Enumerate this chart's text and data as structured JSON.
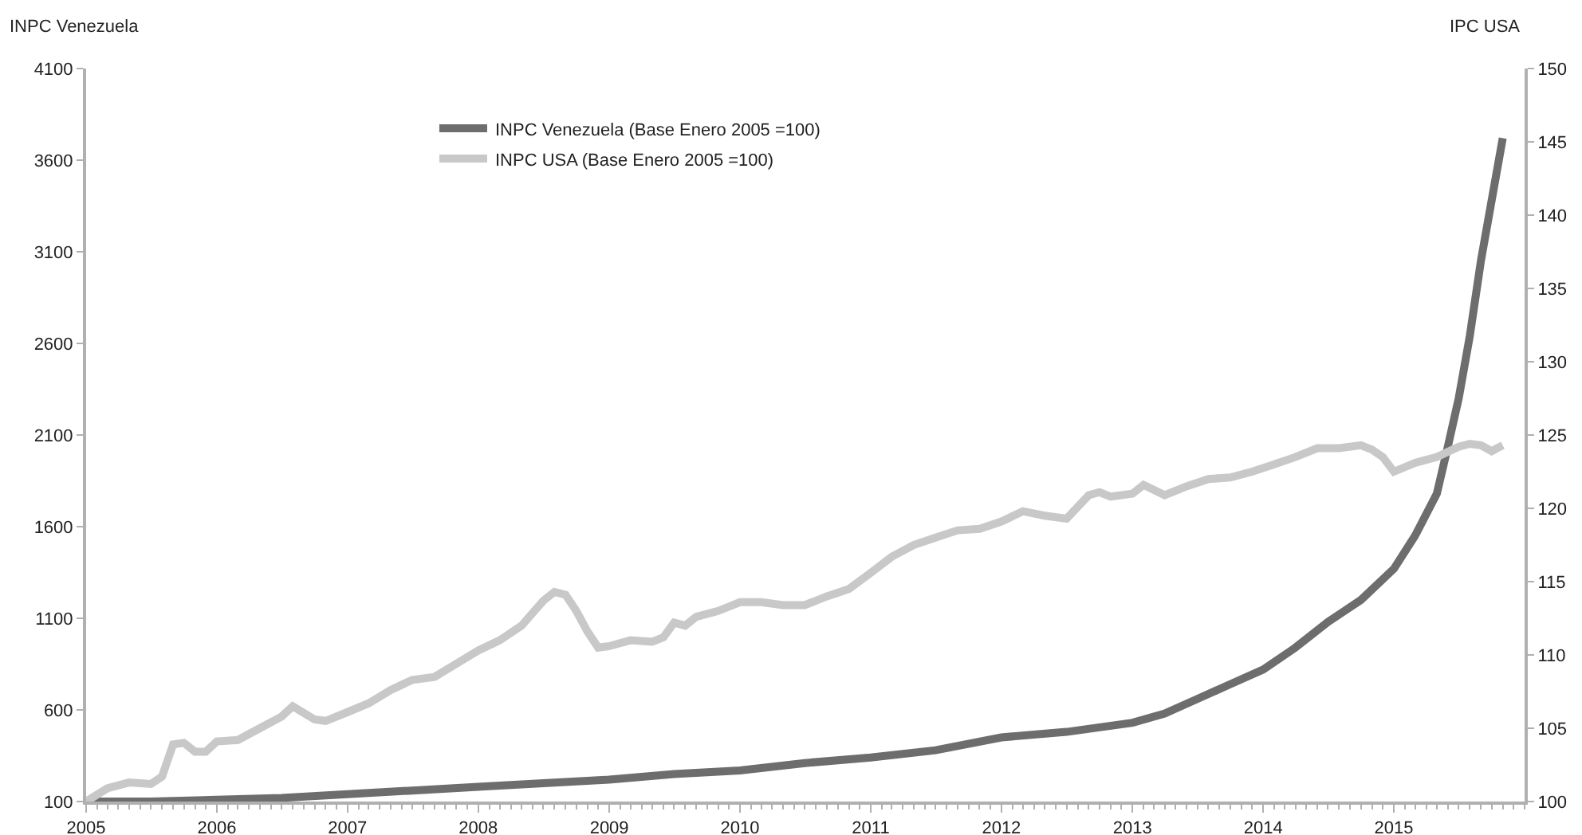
{
  "chart_data": {
    "type": "line",
    "ylabel": "INPC Venezuela",
    "y2label": "IPC USA",
    "series": [
      {
        "name": "INPC Venezuela (Base Enero 2005 =100)",
        "color": "#6d6d6d",
        "axis": "y",
        "x": [
          "2005-01",
          "2005-07",
          "2006-01",
          "2006-07",
          "2007-01",
          "2007-07",
          "2008-01",
          "2008-07",
          "2009-01",
          "2009-07",
          "2010-01",
          "2010-07",
          "2011-01",
          "2011-07",
          "2012-01",
          "2012-07",
          "2013-01",
          "2013-04",
          "2013-07",
          "2013-10",
          "2014-01",
          "2014-04",
          "2014-07",
          "2014-10",
          "2015-01",
          "2015-03",
          "2015-05",
          "2015-06",
          "2015-07",
          "2015-08",
          "2015-09",
          "2015-10",
          "2015-11"
        ],
        "values": [
          100,
          100,
          110,
          120,
          140,
          160,
          180,
          200,
          220,
          250,
          270,
          310,
          340,
          380,
          450,
          480,
          530,
          580,
          660,
          740,
          820,
          940,
          1080,
          1200,
          1370,
          1550,
          1780,
          2040,
          2300,
          2640,
          3050,
          3380,
          3720
        ]
      },
      {
        "name": "INPC USA (Base Enero 2005 =100)",
        "color": "#c8c8c8",
        "axis": "y2",
        "x": [
          "2005-01",
          "2005-03",
          "2005-05",
          "2005-07",
          "2005-08",
          "2005-09",
          "2005-10",
          "2005-11",
          "2005-12",
          "2006-01",
          "2006-03",
          "2006-05",
          "2006-07",
          "2006-08",
          "2006-10",
          "2006-11",
          "2007-01",
          "2007-03",
          "2007-05",
          "2007-07",
          "2007-09",
          "2007-11",
          "2008-01",
          "2008-03",
          "2008-05",
          "2008-07",
          "2008-08",
          "2008-09",
          "2008-10",
          "2008-11",
          "2008-12",
          "2009-01",
          "2009-03",
          "2009-05",
          "2009-06",
          "2009-07",
          "2009-08",
          "2009-09",
          "2009-11",
          "2010-01",
          "2010-03",
          "2010-05",
          "2010-07",
          "2010-09",
          "2010-11",
          "2011-01",
          "2011-03",
          "2011-05",
          "2011-07",
          "2011-09",
          "2011-11",
          "2012-01",
          "2012-03",
          "2012-05",
          "2012-07",
          "2012-09",
          "2012-10",
          "2012-11",
          "2013-01",
          "2013-02",
          "2013-04",
          "2013-06",
          "2013-08",
          "2013-10",
          "2013-12",
          "2014-02",
          "2014-04",
          "2014-06",
          "2014-08",
          "2014-10",
          "2014-11",
          "2014-12",
          "2015-01",
          "2015-03",
          "2015-05",
          "2015-07",
          "2015-08",
          "2015-09",
          "2015-10",
          "2015-11"
        ],
        "values": [
          100.0,
          100.9,
          101.3,
          101.2,
          101.7,
          103.9,
          104.0,
          103.4,
          103.4,
          104.1,
          104.2,
          105.0,
          105.8,
          106.5,
          105.6,
          105.5,
          106.1,
          106.7,
          107.6,
          108.3,
          108.5,
          109.4,
          110.3,
          111.0,
          112.0,
          113.7,
          114.3,
          114.1,
          113.0,
          111.6,
          110.5,
          110.6,
          111.0,
          110.9,
          111.2,
          112.2,
          112.0,
          112.6,
          113.0,
          113.6,
          113.6,
          113.4,
          113.4,
          114.0,
          114.5,
          115.6,
          116.7,
          117.5,
          118.0,
          118.5,
          118.6,
          119.1,
          119.8,
          119.5,
          119.3,
          120.9,
          121.1,
          120.8,
          121.0,
          121.6,
          120.9,
          121.5,
          122.0,
          122.1,
          122.5,
          123.0,
          123.5,
          124.1,
          124.1,
          124.3,
          124.0,
          123.5,
          122.5,
          123.1,
          123.5,
          124.2,
          124.4,
          124.3,
          123.9,
          124.3
        ]
      }
    ],
    "xlim": [
      "2005-01",
      "2016-01"
    ],
    "xticks": [
      {
        "value": "2005-01",
        "label": "2005"
      },
      {
        "value": "2006-01",
        "label": "2006"
      },
      {
        "value": "2007-01",
        "label": "2007"
      },
      {
        "value": "2008-01",
        "label": "2008"
      },
      {
        "value": "2009-01",
        "label": "2009"
      },
      {
        "value": "2010-01",
        "label": "2010"
      },
      {
        "value": "2011-01",
        "label": "2011"
      },
      {
        "value": "2012-01",
        "label": "2012"
      },
      {
        "value": "2013-01",
        "label": "2013"
      },
      {
        "value": "2014-01",
        "label": "2014"
      },
      {
        "value": "2015-01",
        "label": "2015"
      }
    ],
    "ylim": [
      100,
      4100
    ],
    "yticks": [
      100,
      600,
      1100,
      1600,
      2100,
      2600,
      3100,
      3600,
      4100
    ],
    "y2lim": [
      100,
      150
    ],
    "y2ticks": [
      100,
      105,
      110,
      115,
      120,
      125,
      130,
      135,
      140,
      145,
      150
    ],
    "legend": "top left",
    "marker": "none",
    "line_style": "solid"
  }
}
